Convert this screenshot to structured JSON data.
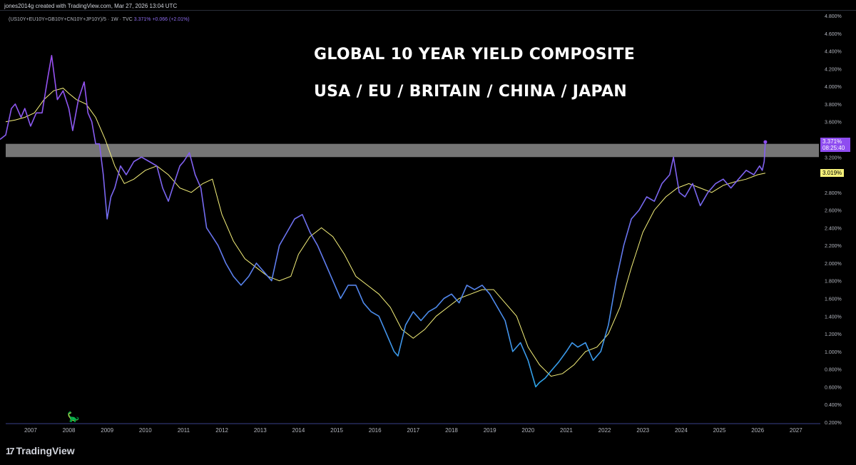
{
  "caption": "jones2014g created with TradingView.com, Mar 27, 2026 13:04 UTC",
  "legend": {
    "symbol": "(US10Y+EU10Y+GB10Y+CN10Y+JP10Y)/5 · 1W · TVC",
    "value": "3.371%",
    "change": "+0.066 (+2.01%)"
  },
  "titles": {
    "line1": "GLOBAL 10 YEAR YIELD COMPOSITE",
    "line2": "USA / EU / BRITAIN / CHINA / JAPAN"
  },
  "badges": {
    "last_price": "3.371%",
    "countdown": "08:25:40",
    "ma_value": "3.019%"
  },
  "footer": {
    "logo_text": "TradingView"
  },
  "colors": {
    "background": "#000000",
    "price_line_top": "#8e4cf0",
    "price_line_bottom": "#2f9bea",
    "moving_average": "#f5f07a",
    "resistance_zone": "#8a8a8a"
  },
  "chart_data": {
    "type": "line",
    "title": "GLOBAL 10 YEAR YIELD COMPOSITE",
    "subtitle": "USA / EU / BRITAIN / CHINA / JAPAN",
    "ylim": [
      0.2,
      4.8
    ],
    "xlim": [
      2006.35,
      2027.6
    ],
    "y_ticks": [
      "4.800%",
      "4.600%",
      "4.400%",
      "4.200%",
      "4.000%",
      "3.800%",
      "3.600%",
      "3.400%",
      "3.200%",
      "3.000%",
      "2.800%",
      "2.600%",
      "2.400%",
      "2.200%",
      "2.000%",
      "1.800%",
      "1.600%",
      "1.400%",
      "1.200%",
      "1.000%",
      "0.800%",
      "0.600%",
      "0.400%",
      "0.200%"
    ],
    "x_ticks": [
      "2007",
      "2008",
      "2009",
      "2010",
      "2011",
      "2012",
      "2013",
      "2014",
      "2015",
      "2016",
      "2017",
      "2018",
      "2019",
      "2020",
      "2021",
      "2022",
      "2023",
      "2024",
      "2025",
      "2026",
      "2027"
    ],
    "zone": {
      "from": 3.2,
      "to": 3.35
    },
    "series": [
      {
        "x": [
          2006.2,
          2006.35,
          2006.5,
          2006.6,
          2006.75,
          2006.85,
          2007.0,
          2007.15,
          2007.3,
          2007.45,
          2007.55,
          2007.7,
          2007.85,
          2008.0,
          2008.1,
          2008.25,
          2008.4,
          2008.5,
          2008.6,
          2008.7,
          2008.8,
          2008.9,
          2009.0,
          2009.1,
          2009.2,
          2009.35,
          2009.5,
          2009.7,
          2009.9,
          2010.1,
          2010.3,
          2010.45,
          2010.6,
          2010.75,
          2010.9,
          2011.0,
          2011.15,
          2011.3,
          2011.45,
          2011.6,
          2011.75,
          2011.9,
          2012.1,
          2012.3,
          2012.5,
          2012.7,
          2012.9,
          2013.1,
          2013.3,
          2013.5,
          2013.7,
          2013.9,
          2014.1,
          2014.3,
          2014.5,
          2014.7,
          2014.9,
          2015.1,
          2015.3,
          2015.5,
          2015.7,
          2015.9,
          2016.1,
          2016.3,
          2016.5,
          2016.6,
          2016.8,
          2017.0,
          2017.2,
          2017.4,
          2017.6,
          2017.8,
          2018.0,
          2018.2,
          2018.4,
          2018.6,
          2018.8,
          2019.0,
          2019.2,
          2019.4,
          2019.6,
          2019.8,
          2020.0,
          2020.1,
          2020.2,
          2020.3,
          2020.45,
          2020.6,
          2020.8,
          2021.0,
          2021.15,
          2021.3,
          2021.5,
          2021.7,
          2021.9,
          2022.1,
          2022.3,
          2022.5,
          2022.7,
          2022.9,
          2023.1,
          2023.3,
          2023.5,
          2023.7,
          2023.8,
          2023.95,
          2024.1,
          2024.3,
          2024.5,
          2024.7,
          2024.9,
          2025.1,
          2025.3,
          2025.5,
          2025.7,
          2025.9,
          2026.05,
          2026.12,
          2026.17,
          2026.2
        ],
        "values": [
          3.4,
          3.45,
          3.75,
          3.8,
          3.65,
          3.75,
          3.55,
          3.7,
          3.7,
          4.1,
          4.35,
          3.85,
          3.95,
          3.75,
          3.5,
          3.85,
          4.05,
          3.7,
          3.6,
          3.35,
          3.35,
          3.0,
          2.5,
          2.75,
          2.85,
          3.1,
          3.0,
          3.15,
          3.2,
          3.15,
          3.1,
          2.85,
          2.7,
          2.9,
          3.1,
          3.15,
          3.25,
          3.0,
          2.85,
          2.4,
          2.3,
          2.2,
          2.0,
          1.85,
          1.75,
          1.85,
          2.0,
          1.9,
          1.8,
          2.2,
          2.35,
          2.5,
          2.55,
          2.35,
          2.2,
          2.0,
          1.8,
          1.6,
          1.75,
          1.75,
          1.55,
          1.45,
          1.4,
          1.2,
          1.0,
          0.95,
          1.3,
          1.45,
          1.35,
          1.45,
          1.5,
          1.6,
          1.65,
          1.55,
          1.75,
          1.7,
          1.75,
          1.65,
          1.5,
          1.35,
          1.0,
          1.1,
          0.9,
          0.75,
          0.6,
          0.65,
          0.7,
          0.78,
          0.88,
          1.0,
          1.1,
          1.05,
          1.1,
          0.9,
          1.0,
          1.3,
          1.8,
          2.2,
          2.5,
          2.6,
          2.75,
          2.7,
          2.9,
          3.0,
          3.2,
          2.8,
          2.75,
          2.9,
          2.65,
          2.8,
          2.9,
          2.95,
          2.85,
          2.95,
          3.05,
          3.0,
          3.1,
          3.05,
          3.15,
          3.371
        ]
      },
      {
        "x": [
          2006.35,
          2006.6,
          2006.85,
          2007.1,
          2007.35,
          2007.6,
          2007.85,
          2008.0,
          2008.2,
          2008.45,
          2008.7,
          2008.95,
          2009.2,
          2009.45,
          2009.7,
          2010.0,
          2010.3,
          2010.6,
          2010.9,
          2011.2,
          2011.5,
          2011.75,
          2012.0,
          2012.3,
          2012.6,
          2012.9,
          2013.2,
          2013.5,
          2013.8,
          2014.0,
          2014.3,
          2014.6,
          2014.9,
          2015.2,
          2015.5,
          2015.8,
          2016.1,
          2016.4,
          2016.7,
          2017.0,
          2017.3,
          2017.6,
          2017.9,
          2018.2,
          2018.5,
          2018.8,
          2019.1,
          2019.4,
          2019.7,
          2020.0,
          2020.3,
          2020.6,
          2020.9,
          2021.2,
          2021.5,
          2021.8,
          2022.1,
          2022.4,
          2022.7,
          2023.0,
          2023.3,
          2023.6,
          2023.9,
          2024.2,
          2024.5,
          2024.8,
          2025.1,
          2025.4,
          2025.7,
          2026.0,
          2026.2
        ],
        "values": [
          3.6,
          3.62,
          3.65,
          3.7,
          3.85,
          3.95,
          3.98,
          3.92,
          3.85,
          3.8,
          3.65,
          3.4,
          3.1,
          2.9,
          2.95,
          3.05,
          3.1,
          3.0,
          2.85,
          2.8,
          2.9,
          2.95,
          2.55,
          2.25,
          2.05,
          1.95,
          1.85,
          1.8,
          1.85,
          2.1,
          2.3,
          2.4,
          2.3,
          2.1,
          1.85,
          1.75,
          1.65,
          1.5,
          1.25,
          1.15,
          1.25,
          1.4,
          1.5,
          1.6,
          1.65,
          1.7,
          1.7,
          1.55,
          1.4,
          1.05,
          0.85,
          0.72,
          0.75,
          0.85,
          1.0,
          1.05,
          1.2,
          1.5,
          1.95,
          2.35,
          2.6,
          2.75,
          2.85,
          2.9,
          2.85,
          2.8,
          2.88,
          2.92,
          2.95,
          3.0,
          3.019
        ]
      }
    ]
  }
}
